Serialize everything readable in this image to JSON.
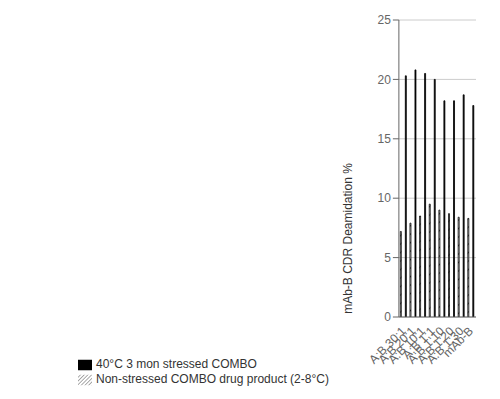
{
  "chart_data": {
    "type": "bar",
    "categories": [
      "A:B 30:1",
      "A:B 20:1",
      "A:B 10:1",
      "A:B 1:1",
      "A:B 1:10",
      "A:B 1:20",
      "A:B 1:30",
      "mAb-B"
    ],
    "series": [
      {
        "name": "Non-stressed COMBO drug product (2-8°C)",
        "color": "white",
        "values": [
          7.2,
          7.9,
          8.5,
          9.5,
          9.0,
          8.7,
          8.4,
          8.3
        ]
      },
      {
        "name": "40°C 3 mon stressed COMBO",
        "color": "#000000",
        "values": [
          20.3,
          20.8,
          20.5,
          20.0,
          18.2,
          18.2,
          18.7,
          17.8
        ]
      }
    ],
    "ylabel": "mAb-B CDR Deamidation %",
    "ylim": [
      0,
      25
    ],
    "yticks": [
      0,
      5,
      10,
      15,
      20,
      25
    ],
    "grid": true,
    "legend": "bottom"
  }
}
